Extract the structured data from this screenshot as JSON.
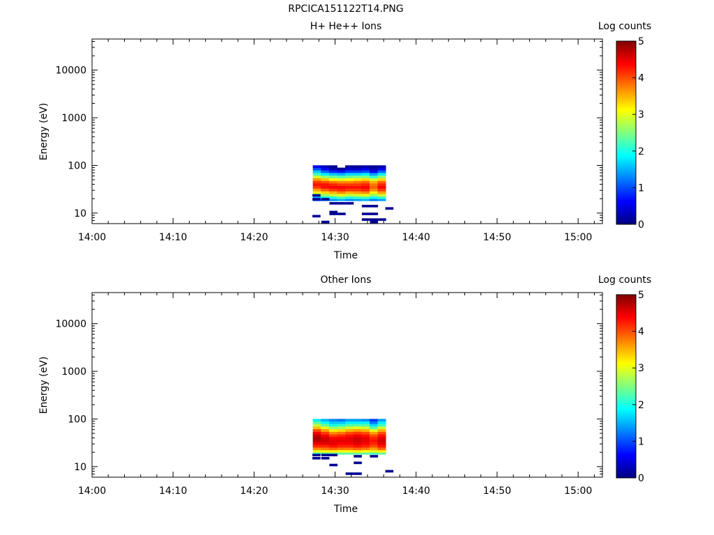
{
  "figure_title": "RPCICA151122T14.PNG",
  "colormap": [
    "#000080",
    "#0000ff",
    "#0080ff",
    "#00ffff",
    "#80ff80",
    "#ffff00",
    "#ff8000",
    "#ff0000",
    "#800000"
  ],
  "chart_data": [
    {
      "type": "heatmap",
      "title": "H+ He++ Ions",
      "xlabel": "Time",
      "ylabel": "Energy (eV)",
      "x_ticks": [
        "14:00",
        "14:10",
        "14:20",
        "14:30",
        "14:40",
        "14:50",
        "15:00"
      ],
      "x_range_min": [
        0,
        63
      ],
      "y_scale": "log",
      "y_range": [
        6,
        45000
      ],
      "y_ticks": [
        "10",
        "100",
        "1000",
        "10000"
      ],
      "colorbar": {
        "label": "Log counts",
        "range": [
          0,
          5
        ],
        "ticks": [
          "0",
          "1",
          "2",
          "3",
          "4",
          "5"
        ]
      },
      "time_bins_min": [
        27.25,
        28.25,
        29.25,
        30.25,
        31.25,
        32.25,
        33.25,
        34.25,
        35.25
      ],
      "time_bin_width_min": 1.0,
      "energy_bins_ev": [
        19,
        21,
        24,
        27,
        31,
        35,
        40,
        45,
        51,
        58,
        66,
        75,
        85,
        95
      ],
      "values": [
        [
          1.0,
          1.2,
          1.3,
          1.5,
          1.3,
          1.4,
          1.5,
          1.2,
          1.4
        ],
        [
          1.5,
          1.8,
          2.0,
          2.2,
          2.0,
          2.1,
          2.2,
          1.9,
          2.1
        ],
        [
          2.3,
          2.6,
          2.8,
          3.0,
          2.8,
          2.9,
          3.0,
          2.6,
          2.9
        ],
        [
          3.0,
          3.3,
          3.5,
          3.7,
          3.5,
          3.6,
          3.7,
          3.2,
          3.6
        ],
        [
          3.6,
          3.9,
          4.1,
          4.2,
          4.1,
          4.1,
          4.2,
          3.7,
          4.1
        ],
        [
          4.1,
          4.3,
          4.4,
          4.4,
          4.3,
          4.3,
          4.4,
          3.9,
          4.4
        ],
        [
          4.3,
          4.3,
          4.2,
          4.1,
          4.1,
          4.1,
          4.2,
          3.8,
          4.2
        ],
        [
          4.1,
          4.0,
          3.8,
          3.7,
          3.7,
          3.8,
          3.9,
          3.5,
          3.9
        ],
        [
          3.6,
          3.4,
          3.1,
          3.0,
          3.1,
          3.2,
          3.3,
          2.9,
          3.3
        ],
        [
          2.9,
          2.6,
          2.4,
          2.3,
          2.4,
          2.5,
          2.5,
          2.1,
          2.6
        ],
        [
          2.2,
          1.8,
          1.6,
          1.5,
          1.7,
          1.7,
          1.8,
          1.4,
          1.8
        ],
        [
          1.6,
          1.1,
          0.8,
          0.7,
          0.9,
          0.9,
          1.0,
          0.6,
          1.1
        ],
        [
          1.0,
          0.6,
          0.2,
          0.1,
          0.4,
          0.3,
          0.5,
          0.2,
          0.5
        ],
        [
          0.5,
          0.3,
          0.1,
          null,
          0.2,
          0.1,
          0.2,
          0.1,
          0.2
        ]
      ],
      "sparse_cells": [
        {
          "t": 27.2,
          "e": 23.5,
          "v": 0.1
        },
        {
          "t": 27.2,
          "e": 19.5,
          "v": 0.1
        },
        {
          "t": 28.3,
          "e": 19.5,
          "v": 0.1
        },
        {
          "t": 29.3,
          "e": 16,
          "v": 0.1
        },
        {
          "t": 30.3,
          "e": 16,
          "v": 0.1
        },
        {
          "t": 31.3,
          "e": 16,
          "v": 0.1
        },
        {
          "t": 33.3,
          "e": 14,
          "v": 0.1
        },
        {
          "t": 34.3,
          "e": 14,
          "v": 0.1
        },
        {
          "t": 36.2,
          "e": 12.5,
          "v": 0.1
        },
        {
          "t": 29.3,
          "e": 10.5,
          "v": 0.1
        },
        {
          "t": 29.3,
          "e": 9.6,
          "v": 0.1
        },
        {
          "t": 30.3,
          "e": 9.6,
          "v": 0.1
        },
        {
          "t": 33.3,
          "e": 9.6,
          "v": 0.1
        },
        {
          "t": 34.3,
          "e": 9.6,
          "v": 0.1
        },
        {
          "t": 27.2,
          "e": 8.6,
          "v": 0.1
        },
        {
          "t": 33.3,
          "e": 7.3,
          "v": 0.1
        },
        {
          "t": 34.3,
          "e": 7.3,
          "v": 0.1
        },
        {
          "t": 35.3,
          "e": 7.3,
          "v": 0.1
        },
        {
          "t": 28.3,
          "e": 6.5,
          "v": 0.1
        },
        {
          "t": 34.3,
          "e": 6.5,
          "v": 0.1
        }
      ]
    },
    {
      "type": "heatmap",
      "title": "Other Ions",
      "xlabel": "Time",
      "ylabel": "Energy (eV)",
      "x_ticks": [
        "14:00",
        "14:10",
        "14:20",
        "14:30",
        "14:40",
        "14:50",
        "15:00"
      ],
      "x_range_min": [
        0,
        63
      ],
      "y_scale": "log",
      "y_range": [
        6,
        45000
      ],
      "y_ticks": [
        "10",
        "100",
        "1000",
        "10000"
      ],
      "colorbar": {
        "label": "Log counts",
        "range": [
          0,
          5
        ],
        "ticks": [
          "0",
          "1",
          "2",
          "3",
          "4",
          "5"
        ]
      },
      "time_bins_min": [
        27.25,
        28.25,
        29.25,
        30.25,
        31.25,
        32.25,
        33.25,
        34.25,
        35.25
      ],
      "time_bin_width_min": 1.0,
      "energy_bins_ev": [
        19,
        21,
        24,
        27,
        31,
        35,
        40,
        45,
        51,
        58,
        66,
        75,
        85,
        95
      ],
      "values": [
        [
          2.2,
          2.3,
          2.4,
          2.3,
          2.3,
          2.4,
          2.3,
          2.2,
          2.4
        ],
        [
          3.0,
          3.1,
          3.2,
          3.1,
          3.1,
          3.2,
          3.1,
          3.0,
          3.2
        ],
        [
          3.7,
          3.8,
          3.9,
          3.8,
          3.8,
          3.9,
          3.8,
          3.6,
          3.9
        ],
        [
          4.2,
          4.2,
          4.3,
          4.2,
          4.2,
          4.3,
          4.2,
          4.0,
          4.3
        ],
        [
          4.5,
          4.5,
          4.5,
          4.4,
          4.4,
          4.5,
          4.4,
          4.2,
          4.5
        ],
        [
          4.7,
          4.6,
          4.5,
          4.5,
          4.5,
          4.6,
          4.5,
          4.3,
          4.6
        ],
        [
          4.8,
          4.6,
          4.4,
          4.4,
          4.5,
          4.6,
          4.5,
          4.2,
          4.5
        ],
        [
          4.7,
          4.4,
          4.1,
          4.2,
          4.3,
          4.4,
          4.3,
          4.0,
          4.3
        ],
        [
          4.4,
          4.1,
          3.7,
          3.8,
          4.0,
          4.1,
          4.0,
          3.6,
          4.0
        ],
        [
          4.0,
          3.6,
          3.2,
          3.3,
          3.5,
          3.6,
          3.5,
          3.0,
          3.5
        ],
        [
          3.4,
          3.0,
          2.6,
          2.7,
          2.9,
          3.0,
          2.9,
          2.3,
          2.9
        ],
        [
          2.8,
          2.4,
          2.0,
          2.1,
          2.3,
          2.3,
          2.3,
          1.7,
          2.2
        ],
        [
          2.3,
          1.9,
          1.6,
          1.6,
          1.8,
          1.8,
          1.8,
          1.2,
          1.8
        ],
        [
          1.8,
          1.5,
          1.3,
          1.2,
          1.4,
          1.4,
          1.3,
          0.9,
          1.4
        ]
      ],
      "sparse_cells": [
        {
          "t": 27.2,
          "e": 17.5,
          "v": 0.1
        },
        {
          "t": 28.3,
          "e": 17.5,
          "v": 0.1
        },
        {
          "t": 29.3,
          "e": 17.5,
          "v": 0.1
        },
        {
          "t": 32.3,
          "e": 16.5,
          "v": 0.1
        },
        {
          "t": 34.3,
          "e": 16.5,
          "v": 0.1
        },
        {
          "t": 27.2,
          "e": 15,
          "v": 0.1
        },
        {
          "t": 28.3,
          "e": 15,
          "v": 0.1
        },
        {
          "t": 32.3,
          "e": 12,
          "v": 0.1
        },
        {
          "t": 29.3,
          "e": 10.8,
          "v": 0.1
        },
        {
          "t": 36.2,
          "e": 8,
          "v": 0.1
        },
        {
          "t": 31.3,
          "e": 7.1,
          "v": 0.1
        },
        {
          "t": 32.3,
          "e": 7.1,
          "v": 0.1
        }
      ]
    }
  ]
}
